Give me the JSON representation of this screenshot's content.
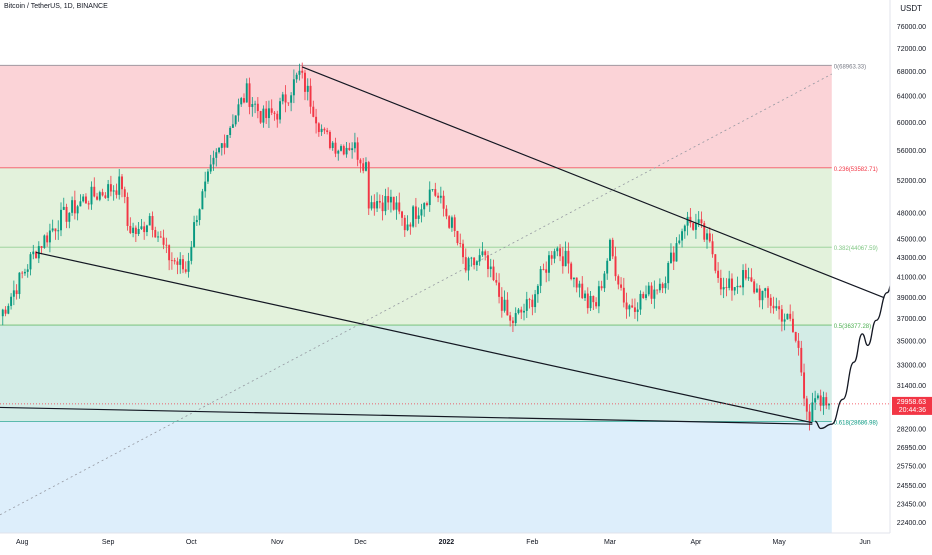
{
  "chart_data": {
    "type": "candlestick",
    "symbol": "Bitcoin / TetherUS, 1D, BINANCE",
    "currency": "USDT",
    "y_axis": {
      "scale": "log",
      "ylim": [
        21800,
        81000
      ],
      "ticks": [
        "76000.00",
        "72000.00",
        "68000.00",
        "64000.00",
        "60000.00",
        "56000.00",
        "52000.00",
        "48000.00",
        "45000.00",
        "43000.00",
        "41000.00",
        "39000.00",
        "37000.00",
        "35000.00",
        "33000.00",
        "31400.00",
        "28200.00",
        "26950.00",
        "25750.00",
        "24550.00",
        "23450.00",
        "22400.00"
      ]
    },
    "x_axis": {
      "range": [
        "2021-07-24",
        "2022-06-10"
      ],
      "ticks": [
        {
          "label": "Aug",
          "date": "2021-08-01",
          "bold": false
        },
        {
          "label": "Sep",
          "date": "2021-09-01",
          "bold": false
        },
        {
          "label": "Oct",
          "date": "2021-10-01",
          "bold": false
        },
        {
          "label": "Nov",
          "date": "2021-11-01",
          "bold": false
        },
        {
          "label": "Dec",
          "date": "2021-12-01",
          "bold": false
        },
        {
          "label": "2022",
          "date": "2022-01-01",
          "bold": true
        },
        {
          "label": "Feb",
          "date": "2022-02-01",
          "bold": false
        },
        {
          "label": "Mar",
          "date": "2022-03-01",
          "bold": false
        },
        {
          "label": "Apr",
          "date": "2022-04-01",
          "bold": false
        },
        {
          "label": "May",
          "date": "2022-05-01",
          "bold": false
        },
        {
          "label": "Jun",
          "date": "2022-06-01",
          "bold": false
        }
      ]
    },
    "fib_levels": [
      {
        "label": "0(68963.33)",
        "price": 68963.33,
        "color": "#787b86"
      },
      {
        "label": "0.236(53582.71)",
        "price": 53582.71,
        "color": "#f23645"
      },
      {
        "label": "0.382(44067.59)",
        "price": 44067.59,
        "color": "#81c784"
      },
      {
        "label": "0.5(36377.28)",
        "price": 36377.28,
        "color": "#4caf50"
      },
      {
        "label": "0.618(28686.98)",
        "price": 28686.98,
        "color": "#089981"
      }
    ],
    "fib_range": {
      "start": "2021-07-24",
      "end": "2022-05-20",
      "bottom": 21800
    },
    "zones": [
      {
        "from": 68963.33,
        "to": 53582.71,
        "color": "#fbd3d7"
      },
      {
        "from": 53582.71,
        "to": 36377.28,
        "color": "#e3f2dc"
      },
      {
        "from": 36377.28,
        "to": 28686.98,
        "color": "#d3ece6"
      },
      {
        "from": 28686.98,
        "to": 21800,
        "color": "#ddeefb"
      }
    ],
    "last_price": {
      "value": "29958.63",
      "countdown": "20:44:36",
      "color": "#f23645",
      "price": 29958.63
    },
    "trendlines": [
      {
        "from": {
          "date": "2021-11-10",
          "price": 68700
        },
        "to": {
          "date": "2022-06-08",
          "price": 38900
        }
      },
      {
        "from": {
          "date": "2021-08-06",
          "price": 43500
        },
        "to": {
          "date": "2022-05-13",
          "price": 28600
        }
      },
      {
        "from": {
          "date": "2021-07-24",
          "price": 29700
        },
        "to": {
          "date": "2022-05-13",
          "price": 28500
        }
      }
    ],
    "diagonal": {
      "from": {
        "date": "2021-07-24",
        "price": 22800
      },
      "to": {
        "date": "2022-05-20",
        "price": 67500
      }
    },
    "projection": [
      {
        "date": "2022-05-14",
        "price": 28700
      },
      {
        "date": "2022-05-16",
        "price": 28200
      },
      {
        "date": "2022-05-20",
        "price": 28500
      },
      {
        "date": "2022-05-24",
        "price": 30300
      },
      {
        "date": "2022-05-28",
        "price": 33200
      },
      {
        "date": "2022-05-31",
        "price": 35600
      },
      {
        "date": "2022-06-02",
        "price": 34600
      },
      {
        "date": "2022-06-05",
        "price": 36800
      },
      {
        "date": "2022-06-09",
        "price": 39400
      },
      {
        "date": "2022-06-11",
        "price": 40700
      }
    ],
    "price_anchors": [
      {
        "date": "2021-07-24",
        "price": 37200
      },
      {
        "date": "2021-08-06",
        "price": 43800
      },
      {
        "date": "2021-08-14",
        "price": 47000
      },
      {
        "date": "2021-08-23",
        "price": 49500
      },
      {
        "date": "2021-09-06",
        "price": 51500
      },
      {
        "date": "2021-09-08",
        "price": 46500
      },
      {
        "date": "2021-09-12",
        "price": 45500
      },
      {
        "date": "2021-09-16",
        "price": 47700
      },
      {
        "date": "2021-09-22",
        "price": 43300
      },
      {
        "date": "2021-09-29",
        "price": 41600
      },
      {
        "date": "2021-10-03",
        "price": 48000
      },
      {
        "date": "2021-10-10",
        "price": 55000
      },
      {
        "date": "2021-10-16",
        "price": 60500
      },
      {
        "date": "2021-10-21",
        "price": 64500
      },
      {
        "date": "2021-10-27",
        "price": 60500
      },
      {
        "date": "2021-11-01",
        "price": 61500
      },
      {
        "date": "2021-11-09",
        "price": 67500
      },
      {
        "date": "2021-11-12",
        "price": 64500
      },
      {
        "date": "2021-11-18",
        "price": 57800
      },
      {
        "date": "2021-11-23",
        "price": 56500
      },
      {
        "date": "2021-11-28",
        "price": 56800
      },
      {
        "date": "2021-12-03",
        "price": 54000
      },
      {
        "date": "2021-12-04",
        "price": 49500
      },
      {
        "date": "2021-12-12",
        "price": 49300
      },
      {
        "date": "2021-12-17",
        "price": 46500
      },
      {
        "date": "2021-12-27",
        "price": 51000
      },
      {
        "date": "2022-01-03",
        "price": 46500
      },
      {
        "date": "2022-01-08",
        "price": 41700
      },
      {
        "date": "2022-01-14",
        "price": 43000
      },
      {
        "date": "2022-01-21",
        "price": 38500
      },
      {
        "date": "2022-01-24",
        "price": 36500
      },
      {
        "date": "2022-01-31",
        "price": 38300
      },
      {
        "date": "2022-02-05",
        "price": 41400
      },
      {
        "date": "2022-02-09",
        "price": 44300
      },
      {
        "date": "2022-02-14",
        "price": 42300
      },
      {
        "date": "2022-02-21",
        "price": 38300
      },
      {
        "date": "2022-02-24",
        "price": 38300
      },
      {
        "date": "2022-03-01",
        "price": 44000
      },
      {
        "date": "2022-03-07",
        "price": 38000
      },
      {
        "date": "2022-03-15",
        "price": 39300
      },
      {
        "date": "2022-03-21",
        "price": 41100
      },
      {
        "date": "2022-03-28",
        "price": 47100
      },
      {
        "date": "2022-04-02",
        "price": 46300
      },
      {
        "date": "2022-04-07",
        "price": 43500
      },
      {
        "date": "2022-04-11",
        "price": 39500
      },
      {
        "date": "2022-04-18",
        "price": 40800
      },
      {
        "date": "2022-04-24",
        "price": 39400
      },
      {
        "date": "2022-04-30",
        "price": 38000
      },
      {
        "date": "2022-05-05",
        "price": 36500
      },
      {
        "date": "2022-05-08",
        "price": 34200
      },
      {
        "date": "2022-05-10",
        "price": 31000
      },
      {
        "date": "2022-05-12",
        "price": 28900
      },
      {
        "date": "2022-05-14",
        "price": 30000
      },
      {
        "date": "2022-05-16",
        "price": 29900
      },
      {
        "date": "2022-05-19",
        "price": 29958.63
      }
    ]
  }
}
